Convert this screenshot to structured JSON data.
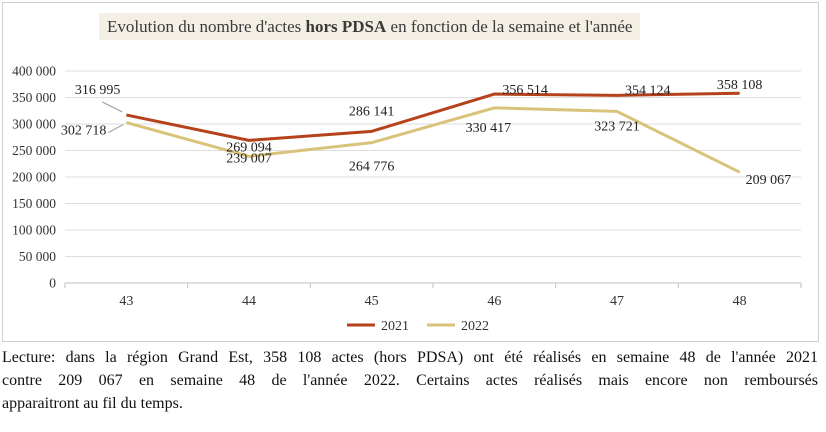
{
  "chart_data": {
    "type": "line",
    "title_parts": [
      "Evolution du nombre d'actes ",
      "hors PDSA",
      " en fonction de la semaine et l'année"
    ],
    "categories": [
      "43",
      "44",
      "45",
      "46",
      "47",
      "48"
    ],
    "series": [
      {
        "name": "2021",
        "color": "#b5421b",
        "values": [
          316995,
          269094,
          286141,
          356514,
          354124,
          358108
        ],
        "labels": [
          "316 995",
          "269 094",
          "286 141",
          "356 514",
          "354 124",
          "358 108"
        ]
      },
      {
        "name": "2022",
        "color": "#d9c37a",
        "values": [
          302718,
          239007,
          264776,
          330417,
          323721,
          209067
        ],
        "labels": [
          "302 718",
          "239 007",
          "264 776",
          "330 417",
          "323 721",
          "209 067"
        ]
      }
    ],
    "ylim": [
      0,
      400000
    ],
    "yticks": [
      "0",
      "50 000",
      "100 000",
      "150 000",
      "200 000",
      "250 000",
      "300 000",
      "350 000",
      "400 000"
    ],
    "ytick_values": [
      0,
      50000,
      100000,
      150000,
      200000,
      250000,
      300000,
      350000,
      400000
    ],
    "grid": true,
    "legend_position": "bottom"
  },
  "caption": {
    "line1": "Lecture: dans la région Grand Est, 358 108 actes (hors PDSA) ont été réalisés en semaine 48 de l'année 2021",
    "line2": "contre 209 067 en semaine 48 de l'année 2022. Certains actes réalisés mais encore non remboursés",
    "line3": "apparaitront au fil du temps."
  }
}
